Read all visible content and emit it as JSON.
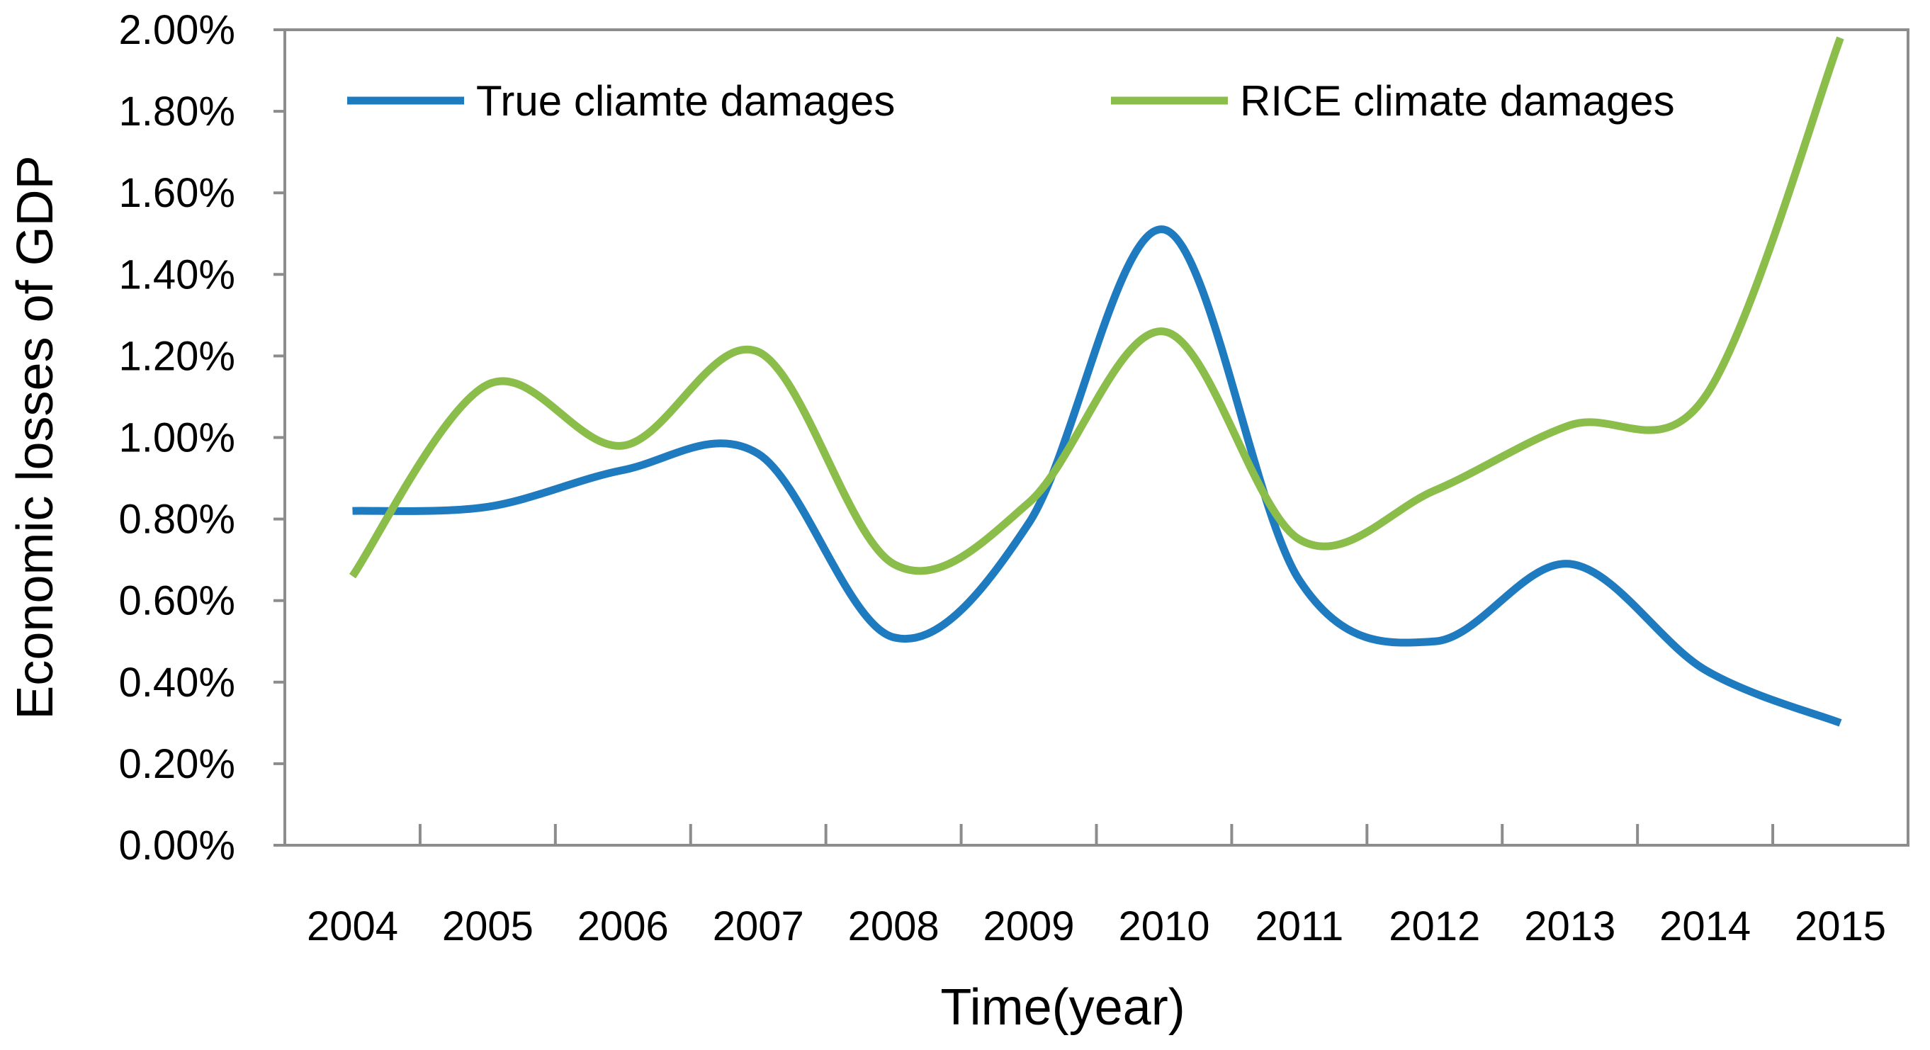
{
  "chart_data": {
    "type": "line",
    "title": "",
    "xlabel": "Time(year)",
    "ylabel": "Economic losses of GDP",
    "categories": [
      "2004",
      "2005",
      "2006",
      "2007",
      "2008",
      "2009",
      "2010",
      "2011",
      "2012",
      "2013",
      "2014",
      "2015"
    ],
    "ylim": [
      0,
      2.0
    ],
    "yticks": [
      "0.00%",
      "0.20%",
      "0.40%",
      "0.60%",
      "0.80%",
      "1.00%",
      "1.20%",
      "1.40%",
      "1.60%",
      "1.80%",
      "2.00%"
    ],
    "y_unit": "%",
    "grid": false,
    "legend_position": "top",
    "series": [
      {
        "name": "True cliamte damages",
        "color": "#1f7bc0",
        "values": [
          0.82,
          0.83,
          0.92,
          0.96,
          0.51,
          0.79,
          1.51,
          0.65,
          0.5,
          0.69,
          0.43,
          0.3
        ]
      },
      {
        "name": "RICE climate damages",
        "color": "#8bbd4a",
        "values": [
          0.66,
          1.13,
          0.98,
          1.21,
          0.69,
          0.84,
          1.26,
          0.75,
          0.87,
          1.03,
          1.1,
          1.98
        ]
      }
    ]
  }
}
